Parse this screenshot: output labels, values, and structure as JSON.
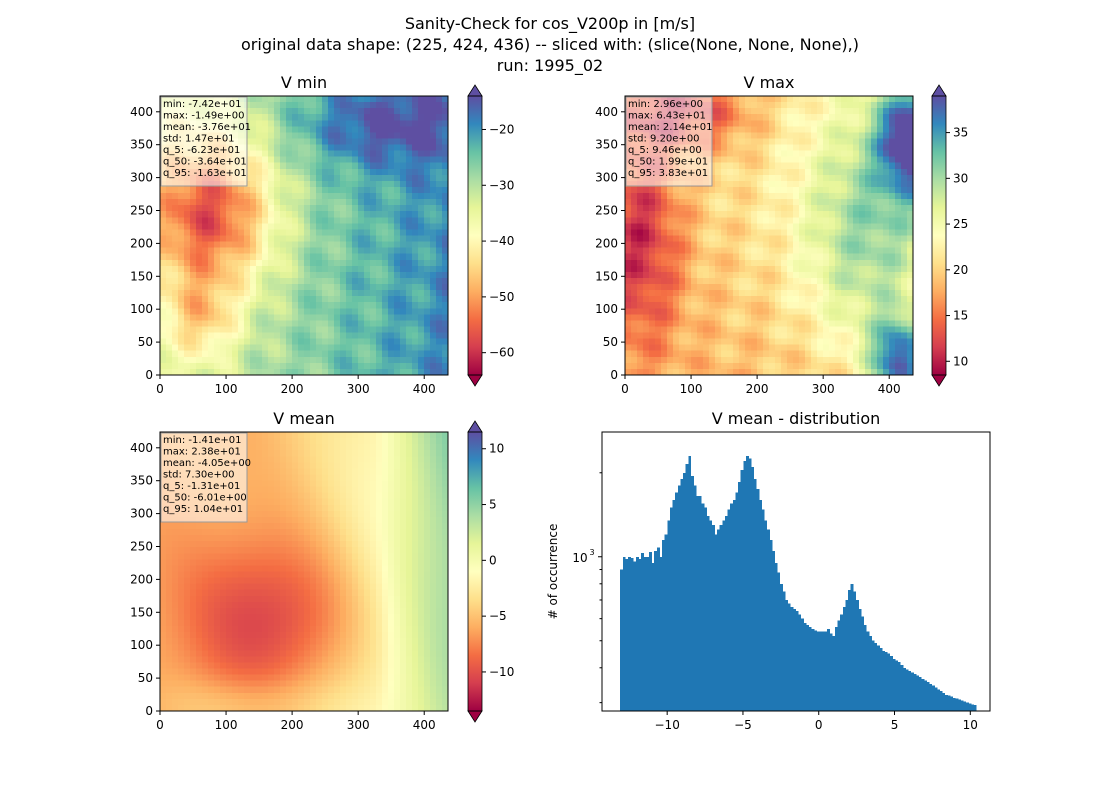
{
  "figure": {
    "title_line1": "Sanity-Check for cos_V200p in [m/s]",
    "title_line2": "original data shape: (225, 424, 436) -- sliced with: (slice(None, None, None),)",
    "title_line3": "run: 1995_02"
  },
  "colors": {
    "colormap": [
      "#9e0142",
      "#d53e4f",
      "#f46d43",
      "#fdae61",
      "#fee08b",
      "#ffffbf",
      "#e6f598",
      "#abdda4",
      "#66c2a5",
      "#3288bd",
      "#5e4fa2"
    ],
    "histogram_bar": "#1f77b4"
  },
  "chart_data": [
    {
      "type": "heatmap",
      "title": "V min",
      "xlim": [
        0,
        436
      ],
      "ylim": [
        0,
        424
      ],
      "xticks": [
        0,
        100,
        200,
        300,
        400
      ],
      "yticks": [
        0,
        50,
        100,
        150,
        200,
        250,
        300,
        350,
        400
      ],
      "colorbar": {
        "range": [
          -64,
          -14
        ],
        "ticks": [
          -60,
          -50,
          -40,
          -30,
          -20
        ],
        "extend": "both"
      },
      "stats": [
        "min: -7.42e+01",
        "max: -1.49e+00",
        "mean: -3.76e+01",
        "std: 1.47e+01",
        "q_5: -6.23e+01",
        "q_50: -3.64e+01",
        "q_95: -1.63e+01"
      ]
    },
    {
      "type": "heatmap",
      "title": "V max",
      "xlim": [
        0,
        436
      ],
      "ylim": [
        0,
        424
      ],
      "xticks": [
        0,
        100,
        200,
        300,
        400
      ],
      "yticks": [
        0,
        50,
        100,
        150,
        200,
        250,
        300,
        350,
        400
      ],
      "colorbar": {
        "range": [
          8.5,
          39
        ],
        "ticks": [
          10,
          15,
          20,
          25,
          30,
          35
        ],
        "extend": "both"
      },
      "stats": [
        "min: 2.96e+00",
        "max: 6.43e+01",
        "mean: 2.14e+01",
        "std: 9.20e+00",
        "q_5: 9.46e+00",
        "q_50: 1.99e+01",
        "q_95: 3.83e+01"
      ]
    },
    {
      "type": "heatmap",
      "title": "V mean",
      "xlim": [
        0,
        436
      ],
      "ylim": [
        0,
        424
      ],
      "xticks": [
        0,
        100,
        200,
        300,
        400
      ],
      "yticks": [
        0,
        50,
        100,
        150,
        200,
        250,
        300,
        350,
        400
      ],
      "colorbar": {
        "range": [
          -13.5,
          11.5
        ],
        "ticks": [
          -10,
          -5,
          0,
          5,
          10
        ],
        "extend": "both"
      },
      "stats": [
        "min: -1.41e+01",
        "max: 2.38e+01",
        "mean: -4.05e+00",
        "std: 7.30e+00",
        "q_5: -1.31e+01",
        "q_50: -6.01e+00",
        "q_95: 1.04e+01"
      ]
    },
    {
      "type": "bar",
      "title": "V mean - distribution",
      "ylabel": "# of occurrence",
      "yscale": "log",
      "xlim": [
        -14.3,
        11.3
      ],
      "ylim": [
        280,
        2800
      ],
      "xticks": [
        -10,
        -5,
        0,
        5,
        10
      ],
      "xticklabels": [
        "−10",
        "−5",
        "0",
        "5",
        "10"
      ],
      "yticks_major": [
        1000
      ],
      "ytick_label": "10",
      "ytick_exponent": "3",
      "bins": {
        "start": -13.1,
        "end": 10.4
      },
      "values": [
        900,
        1000,
        980,
        1000,
        990,
        960,
        1000,
        980,
        1030,
        1000,
        1000,
        1040,
        950,
        1050,
        1080,
        1000,
        1150,
        1200,
        1350,
        1500,
        1600,
        1700,
        1800,
        1900,
        2000,
        2150,
        2300,
        1950,
        1800,
        1650,
        1650,
        1550,
        1500,
        1400,
        1350,
        1300,
        1200,
        1250,
        1300,
        1350,
        1400,
        1480,
        1550,
        1600,
        1700,
        1850,
        2050,
        2200,
        2300,
        2250,
        2100,
        1900,
        1750,
        1600,
        1480,
        1350,
        1250,
        1150,
        1050,
        950,
        880,
        800,
        750,
        700,
        680,
        660,
        650,
        640,
        620,
        600,
        580,
        570,
        560,
        550,
        545,
        540,
        540,
        540,
        540,
        550,
        530,
        520,
        560,
        590,
        620,
        660,
        700,
        760,
        800,
        750,
        700,
        650,
        610,
        570,
        540,
        520,
        500,
        490,
        480,
        470,
        460,
        455,
        450,
        440,
        430,
        425,
        420,
        410,
        400,
        395,
        390,
        385,
        380,
        375,
        370,
        365,
        360,
        355,
        350,
        345,
        340,
        335,
        330,
        325,
        320,
        318,
        315,
        312,
        310,
        308,
        305,
        303,
        300,
        298,
        296,
        294
      ]
    }
  ]
}
